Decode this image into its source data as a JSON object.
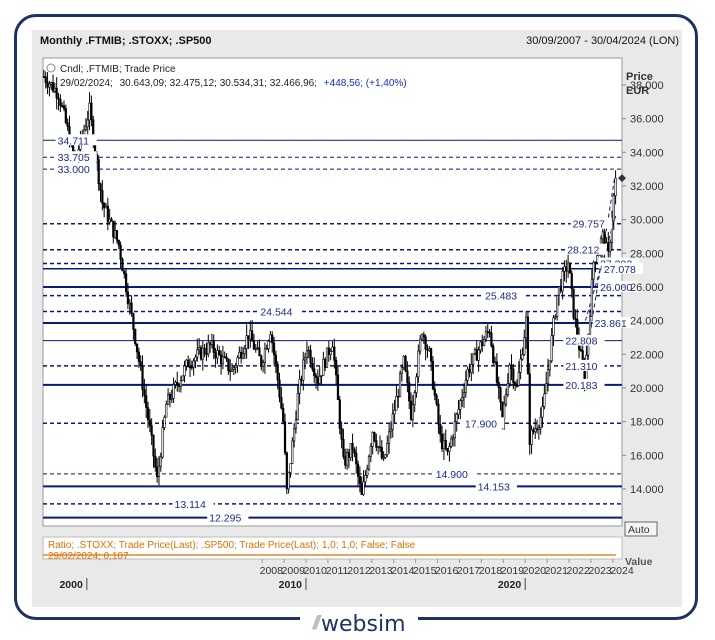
{
  "header": {
    "title": "Monthly .FTMIB; .STOXX; .SP500",
    "range": "30/09/2007 - 30/04/2024 (LON)"
  },
  "colors": {
    "frame": "#1f3260",
    "level_line": "#0a1a7a",
    "label": "#1a2a8a",
    "candle": "#000000",
    "ratio": "#e07000"
  },
  "chart_data": {
    "type": "candlestick",
    "legend": {
      "series_label": "Cndl; .FTMIB; Trade Price",
      "date": "29/02/2024;",
      "ohlc": "30.643,09; 32.475,12; 30.534,31; 32.466,96;",
      "change": "+448,56; (+1,40%)"
    },
    "y_axis": {
      "title": "Price",
      "unit": "EUR",
      "range": [
        11800,
        39600
      ],
      "ticks": [
        {
          "v": 38000,
          "label": "38.000"
        },
        {
          "v": 36000,
          "label": "36.000"
        },
        {
          "v": 34000,
          "label": "34.000"
        },
        {
          "v": 32000,
          "label": "32.000"
        },
        {
          "v": 30000,
          "label": "30.000"
        },
        {
          "v": 28000,
          "label": "28.000"
        },
        {
          "v": 26000,
          "label": "26.000"
        },
        {
          "v": 24000,
          "label": "24.000"
        },
        {
          "v": 22000,
          "label": "22.000"
        },
        {
          "v": 20000,
          "label": "20.000"
        },
        {
          "v": 18000,
          "label": "18.000"
        },
        {
          "v": 16000,
          "label": "16.000"
        },
        {
          "v": 14000,
          "label": "14.000"
        }
      ],
      "last_price": 32467,
      "auto_label": "Auto",
      "value_label": "Value"
    },
    "x_axis": {
      "years": [
        "2008",
        "2009",
        "2010",
        "2011",
        "2012",
        "2013",
        "2014",
        "2015",
        "2016",
        "2017",
        "2018",
        "2019",
        "2020",
        "2021",
        "2022",
        "2023",
        "2024"
      ],
      "decades": [
        "2000",
        "2010",
        "2020"
      ],
      "start": "1998-01",
      "end": "2024-06"
    },
    "levels": [
      {
        "v": 34711,
        "label": "34.711",
        "style": "solid",
        "weight": 1,
        "label_at": "1998-09"
      },
      {
        "v": 33705,
        "label": "33.705",
        "style": "dashed",
        "weight": 1,
        "label_at": "1998-09"
      },
      {
        "v": 33000,
        "label": "33.000",
        "style": "dashed",
        "weight": 1,
        "label_at": "1998-09"
      },
      {
        "v": 29757,
        "label": "29.757",
        "style": "dashed",
        "weight": 1.5,
        "label_at": "2022-03"
      },
      {
        "v": 28212,
        "label": "28.212",
        "style": "dashed",
        "weight": 1.5,
        "label_at": "2021-12"
      },
      {
        "v": 27392,
        "label": "27.392",
        "style": "dashed",
        "weight": 1.5,
        "label_at": "2023-06"
      },
      {
        "v": 27078,
        "label": "27.078",
        "style": "solid",
        "weight": 1.5,
        "label_at": "2023-08"
      },
      {
        "v": 26000,
        "label": "26.000",
        "style": "solid",
        "weight": 2,
        "label_at": "2023-06"
      },
      {
        "v": 25483,
        "label": "25.483",
        "style": "dashed",
        "weight": 1.5,
        "label_at": "2018-03"
      },
      {
        "v": 24544,
        "label": "24.544",
        "style": "dashed",
        "weight": 1.5,
        "label_at": "2007-12"
      },
      {
        "v": 23861,
        "label": "23.861",
        "style": "solid",
        "weight": 2,
        "label_at": "2023-03"
      },
      {
        "v": 22808,
        "label": "22.808",
        "style": "solid",
        "weight": 1,
        "label_at": "2021-11"
      },
      {
        "v": 21310,
        "label": "21.310",
        "style": "dashed",
        "weight": 1.5,
        "label_at": "2021-11"
      },
      {
        "v": 20183,
        "label": "20.183",
        "style": "solid",
        "weight": 2,
        "label_at": "2021-11"
      },
      {
        "v": 17900,
        "label": "17.900",
        "style": "dashed",
        "weight": 1.5,
        "label_at": "2017-04"
      },
      {
        "v": 14900,
        "label": "14.900",
        "style": "dashed",
        "weight": 1,
        "label_at": "2015-12"
      },
      {
        "v": 14153,
        "label": "14.153",
        "style": "solid",
        "weight": 2,
        "label_at": "2017-11"
      },
      {
        "v": 13114,
        "label": "13.114",
        "style": "dashed",
        "weight": 1.5,
        "label_at": "2004-01"
      },
      {
        "v": 12295,
        "label": "12.295",
        "style": "solid",
        "weight": 2,
        "label_at": "2005-08"
      }
    ],
    "trendlines": [
      {
        "from": {
          "t": "2022-10",
          "v": 21500
        },
        "to": {
          "t": "2024-02",
          "v": 32500
        },
        "style": "dashed"
      },
      {
        "from": {
          "t": "2022-10",
          "v": 24000
        },
        "to": {
          "t": "2024-03",
          "v": 30400
        },
        "style": "dashed"
      }
    ],
    "anchors": [
      {
        "t": "1998-01",
        "v": 38500
      },
      {
        "t": "1998-09",
        "v": 37500
      },
      {
        "t": "1999-06",
        "v": 33500
      },
      {
        "t": "2000-02",
        "v": 36500
      },
      {
        "t": "2000-09",
        "v": 31000
      },
      {
        "t": "2001-06",
        "v": 28500
      },
      {
        "t": "2002-03",
        "v": 23000
      },
      {
        "t": "2002-11",
        "v": 17500
      },
      {
        "t": "2003-03",
        "v": 14500
      },
      {
        "t": "2003-08",
        "v": 19000
      },
      {
        "t": "2004-08",
        "v": 21500
      },
      {
        "t": "2005-08",
        "v": 22500
      },
      {
        "t": "2006-08",
        "v": 21000
      },
      {
        "t": "2007-05",
        "v": 23200
      },
      {
        "t": "2007-12",
        "v": 21500
      },
      {
        "t": "2008-05",
        "v": 23500
      },
      {
        "t": "2008-09",
        "v": 20500
      },
      {
        "t": "2008-12",
        "v": 18000
      },
      {
        "t": "2009-02",
        "v": 13800
      },
      {
        "t": "2009-08",
        "v": 19500
      },
      {
        "t": "2010-01",
        "v": 22500
      },
      {
        "t": "2010-07",
        "v": 20500
      },
      {
        "t": "2011-03",
        "v": 22800
      },
      {
        "t": "2011-09",
        "v": 15500
      },
      {
        "t": "2012-02",
        "v": 16500
      },
      {
        "t": "2012-07",
        "v": 13500
      },
      {
        "t": "2013-01",
        "v": 17500
      },
      {
        "t": "2013-07",
        "v": 15500
      },
      {
        "t": "2014-06",
        "v": 21500
      },
      {
        "t": "2014-10",
        "v": 18500
      },
      {
        "t": "2015-04",
        "v": 23500
      },
      {
        "t": "2015-08",
        "v": 22000
      },
      {
        "t": "2016-02",
        "v": 17000
      },
      {
        "t": "2016-06",
        "v": 16000
      },
      {
        "t": "2017-05",
        "v": 21000
      },
      {
        "t": "2017-12",
        "v": 22500
      },
      {
        "t": "2018-05",
        "v": 23500
      },
      {
        "t": "2018-12",
        "v": 18000
      },
      {
        "t": "2019-04",
        "v": 21500
      },
      {
        "t": "2019-08",
        "v": 20000
      },
      {
        "t": "2020-01",
        "v": 24000
      },
      {
        "t": "2020-03",
        "v": 17000
      },
      {
        "t": "2020-10",
        "v": 18500
      },
      {
        "t": "2021-06",
        "v": 25500
      },
      {
        "t": "2021-12",
        "v": 27500
      },
      {
        "t": "2022-03",
        "v": 24500
      },
      {
        "t": "2022-09",
        "v": 20500
      },
      {
        "t": "2023-02",
        "v": 27500
      },
      {
        "t": "2023-07",
        "v": 29000
      },
      {
        "t": "2023-10",
        "v": 27800
      },
      {
        "t": "2024-02",
        "v": 32467
      }
    ],
    "ratio_panel": {
      "label": "Ratio; .STOXX; Trade Price(Last); .SP500; Trade Price(Last);  1,0; 1,0; False; False",
      "value_label": "29/02/2024; 0,107"
    }
  },
  "branding": {
    "logo_text": "websim"
  }
}
